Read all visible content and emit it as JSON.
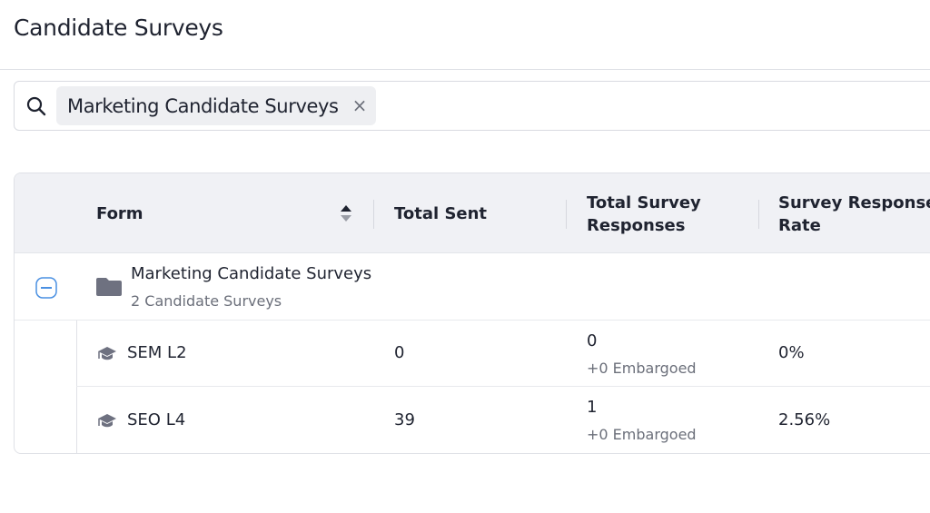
{
  "page": {
    "title": "Candidate Surveys"
  },
  "search": {
    "chip_label": "Marketing Candidate Surveys",
    "chip_remove": "×"
  },
  "table": {
    "headers": {
      "form": "Form",
      "total_sent": "Total Sent",
      "total_responses": "Total Survey Responses",
      "response_rate": "Survey Response Rate"
    },
    "group": {
      "name": "Marketing Candidate Surveys",
      "subtitle": "2 Candidate Surveys"
    },
    "rows": [
      {
        "form": "SEM L2",
        "total_sent": "0",
        "responses": "0",
        "embargoed": "+0 Embargoed",
        "rate": "0%"
      },
      {
        "form": "SEO L4",
        "total_sent": "39",
        "responses": "1",
        "embargoed": "+0 Embargoed",
        "rate": "2.56%"
      }
    ]
  },
  "colors": {
    "accent": "#4a90e2",
    "icon": "#6e7180"
  }
}
